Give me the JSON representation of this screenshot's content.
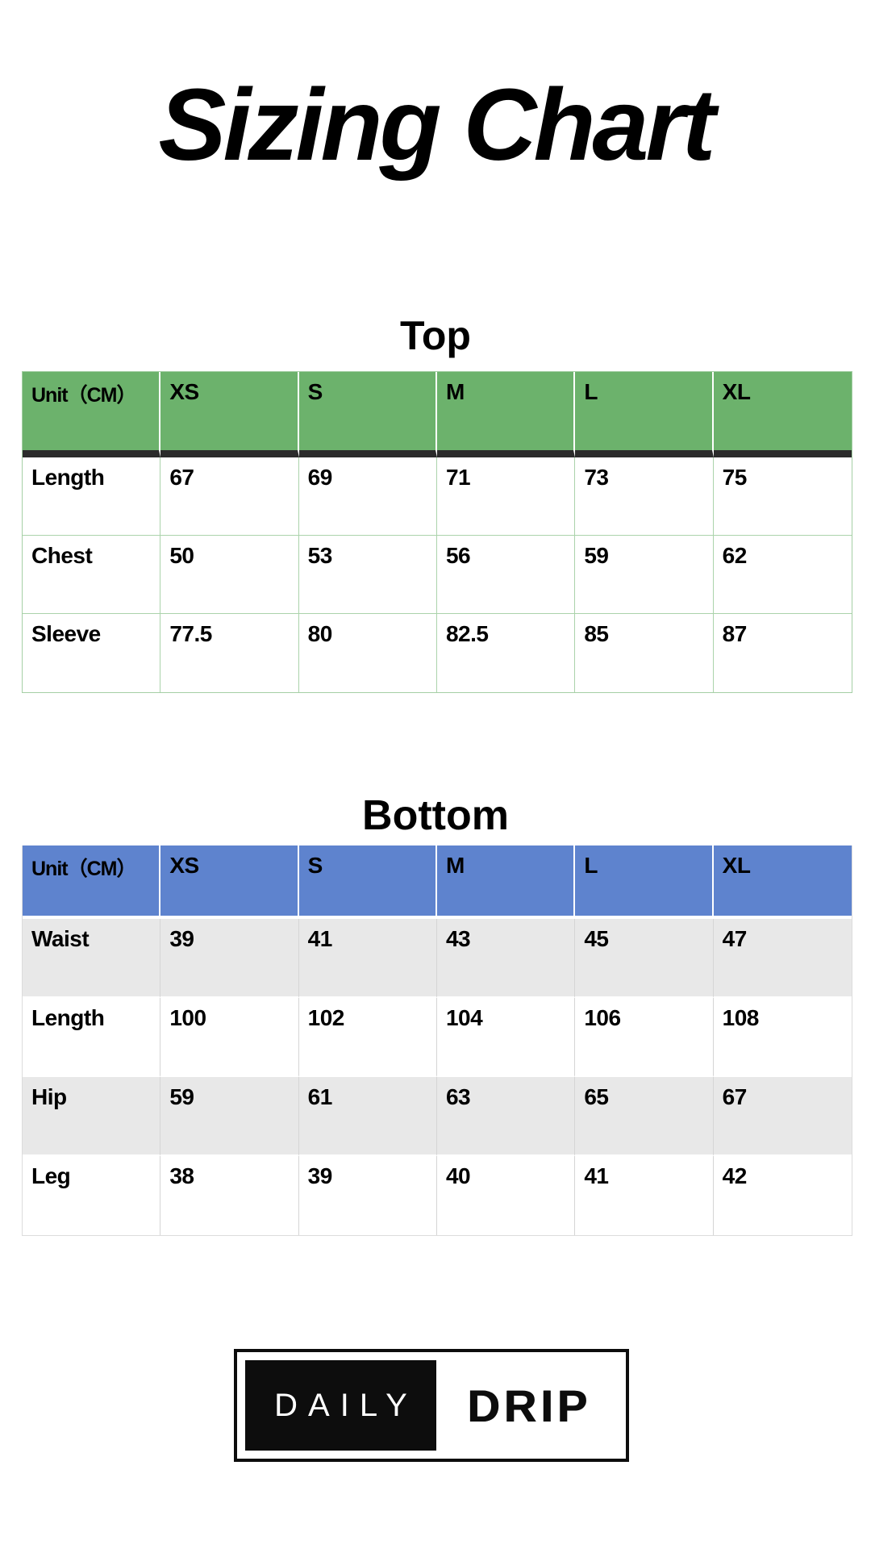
{
  "title": "Sizing Chart",
  "tables": [
    {
      "heading": "Top",
      "header_bg": "#6CB26C",
      "header_rule": "#2B2B2B",
      "grid_color": "#ABD3AB",
      "columns": [
        "Unit（CM）",
        "XS",
        "S",
        "M",
        "L",
        "XL"
      ],
      "rows": [
        {
          "label": "Length",
          "values": [
            "67",
            "69",
            "71",
            "73",
            "75"
          ]
        },
        {
          "label": "Chest",
          "values": [
            "50",
            "53",
            "56",
            "59",
            "62"
          ]
        },
        {
          "label": "Sleeve",
          "values": [
            "77.5",
            "80",
            "82.5",
            "85",
            "87"
          ]
        }
      ]
    },
    {
      "heading": "Bottom",
      "header_bg": "#5E83CE",
      "alt_row_bg": "#E8E8E8",
      "grid_color": "#D5D5D5",
      "columns": [
        "Unit（CM）",
        "XS",
        "S",
        "M",
        "L",
        "XL"
      ],
      "rows": [
        {
          "label": "Waist",
          "values": [
            "39",
            "41",
            "43",
            "45",
            "47"
          ]
        },
        {
          "label": "Length",
          "values": [
            "100",
            "102",
            "104",
            "106",
            "108"
          ]
        },
        {
          "label": "Hip",
          "values": [
            "59",
            "61",
            "63",
            "65",
            "67"
          ]
        },
        {
          "label": "Leg",
          "values": [
            "38",
            "39",
            "40",
            "41",
            "42"
          ]
        }
      ]
    }
  ],
  "logo": {
    "daily": "DAILY",
    "drip": "DRIP"
  }
}
